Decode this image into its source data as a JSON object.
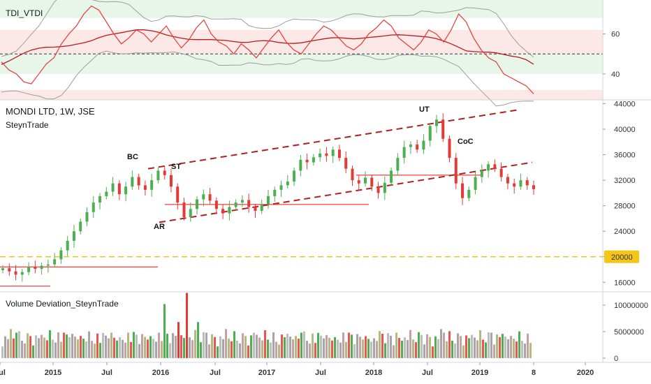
{
  "panes": {
    "tdi": {
      "title": "TDI_VTDI"
    },
    "price": {
      "title": "MONDI LTD, 1W, JSE",
      "subtitle": "SteynTrade"
    },
    "volume": {
      "title": "Volume Deviation_SteynTrade"
    }
  },
  "annotations": [
    "BC",
    "ST",
    "AR",
    "UT",
    "CoC"
  ],
  "price_badge": "20000",
  "colors": {
    "up": "#4caf50",
    "down": "#e53935",
    "trendline": "#b71c1c",
    "support": "#ef5350",
    "level_20000": "#f5c518",
    "tdi_line": "#e53935",
    "tdi_band": "#9e9e9e",
    "tdi_mid": "#b71c1c",
    "zone_green": "#e8f5e9",
    "zone_red": "#fde8e8"
  },
  "chart_data": [
    {
      "type": "line",
      "title": "TDI_VTDI",
      "y_ticks": [
        40,
        60
      ],
      "ylim": [
        27,
        77
      ],
      "zones": [
        [
          68,
          77,
          "green"
        ],
        [
          50,
          62,
          "red"
        ],
        [
          40,
          50,
          "green"
        ],
        [
          27,
          32,
          "red"
        ]
      ],
      "series": [],
      "y": [
        46,
        42,
        40,
        36,
        35,
        40,
        45,
        48,
        55,
        60,
        64,
        70,
        74,
        72,
        66,
        60,
        55,
        58,
        62,
        60,
        56,
        60,
        64,
        58,
        53,
        57,
        63,
        67,
        60,
        56,
        54,
        50,
        55,
        52,
        48,
        53,
        58,
        62,
        56,
        52,
        50,
        55,
        60,
        64,
        62,
        58,
        54,
        52,
        55,
        60,
        63,
        67,
        64,
        58,
        55,
        52,
        56,
        62,
        60,
        56,
        62,
        70,
        66,
        58,
        52,
        48,
        46,
        40,
        38,
        36,
        34,
        30
      ]
    },
    {
      "type": "candlestick",
      "title": "MONDI LTD, 1W, JSE",
      "x_ticks": [
        "Jul",
        "2015",
        "Jul",
        "2016",
        "Jul",
        "2017",
        "Jul",
        "2018",
        "Jul",
        "2019",
        "8",
        "2020"
      ],
      "y_ticks": [
        16000,
        20000,
        24000,
        28000,
        32000,
        36000,
        40000,
        44000
      ],
      "ylim": [
        14500,
        44600
      ],
      "price_line": 20000,
      "close": [
        18200,
        17700,
        17200,
        17600,
        18400,
        18100,
        18600,
        18800,
        19600,
        21000,
        22500,
        24000,
        25500,
        27000,
        28500,
        29500,
        30200,
        31500,
        29800,
        31000,
        32500,
        31200,
        30500,
        32000,
        33500,
        32800,
        31000,
        28500,
        26200,
        27500,
        29000,
        29800,
        28800,
        27500,
        26800,
        27800,
        28500,
        28900,
        27800,
        27200,
        28200,
        29500,
        30500,
        31200,
        31800,
        33500,
        35200,
        34800,
        35600,
        36200,
        35800,
        36800,
        35500,
        33800,
        32000,
        31500,
        32400,
        31000,
        30000,
        31600,
        33500,
        35500,
        37200,
        37600,
        36800,
        38200,
        40500,
        41500,
        38500,
        35500,
        31500,
        29200,
        30500,
        32500,
        33500,
        34500,
        33800,
        32500,
        31500,
        31000,
        32000,
        31200,
        30600
      ],
      "support_levels": [
        15400,
        18400,
        28200,
        32800
      ],
      "trendlines": "rising channel"
    },
    {
      "type": "bar",
      "title": "Volume Deviation_SteynTrade",
      "y_ticks": [
        0,
        5000000,
        10000000
      ],
      "ylim": [
        -800000,
        12500000
      ]
    }
  ]
}
